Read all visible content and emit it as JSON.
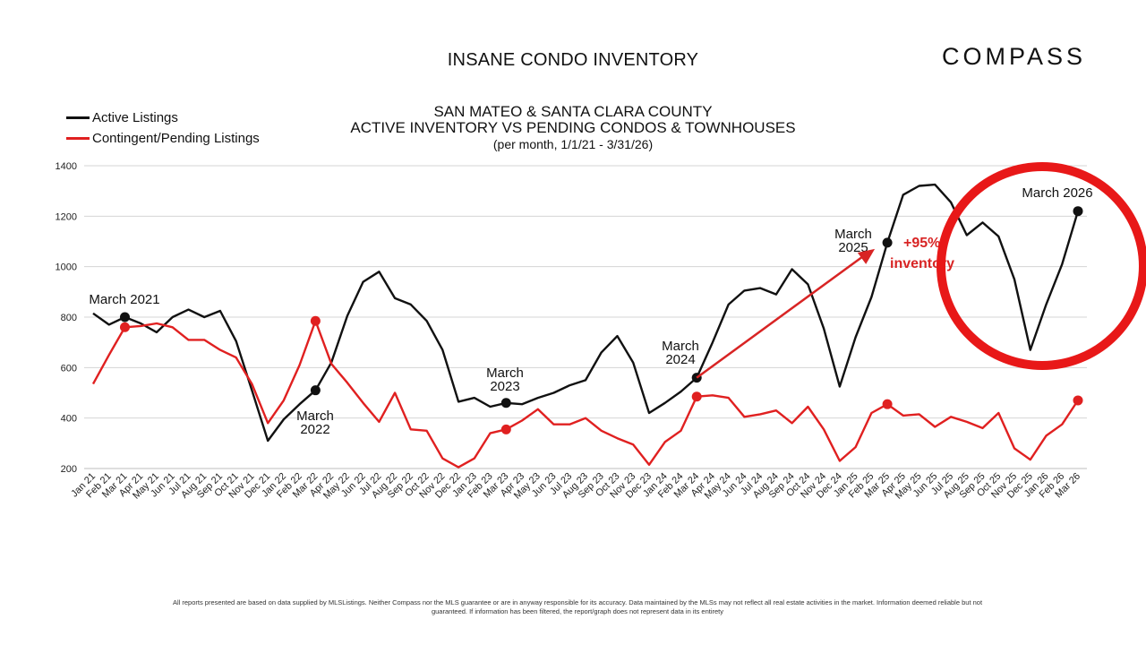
{
  "page_title": "INSANE CONDO INVENTORY",
  "logo_text": "COMPASS",
  "disclaimer_lines": [
    "All reports presented are based on data supplied by MLSListings. Neither Compass nor the MLS guarantee or are in anyway responsible for its accuracy. Data maintained by the MLSs may not reflect all real estate activities in the market. Information deemed reliable but not",
    "guaranteed. If information has been filtered, the report/graph does not represent data in its entirety"
  ],
  "chart_data": {
    "type": "line",
    "title_lines": [
      "SAN MATEO & SANTA CLARA COUNTY",
      "ACTIVE INVENTORY VS PENDING CONDOS & TOWNHOUSES"
    ],
    "subtitle": "(per month, 1/1/21 - 3/31/26)",
    "xlabel": "",
    "ylabel": "",
    "ylim": [
      200,
      1400
    ],
    "yticks": [
      200,
      400,
      600,
      800,
      1000,
      1200,
      1400
    ],
    "grid": true,
    "legend_position": "top-left",
    "categories": [
      "Jan 21",
      "Feb 21",
      "Mar 21",
      "Apr 21",
      "May 21",
      "Jun 21",
      "Jul 21",
      "Aug 21",
      "Sep 21",
      "Oct 21",
      "Nov 21",
      "Dec 21",
      "Jan 22",
      "Feb 22",
      "Mar 22",
      "Apr 22",
      "May 22",
      "Jun 22",
      "Jul 22",
      "Aug 22",
      "Sep 22",
      "Oct 22",
      "Nov 22",
      "Dec 22",
      "Jan 23",
      "Feb 23",
      "Mar 23",
      "Apr 23",
      "May 23",
      "Jun 23",
      "Jul 23",
      "Aug 23",
      "Sep 23",
      "Oct 23",
      "Nov 23",
      "Dec 23",
      "Jan 24",
      "Feb 24",
      "Mar 24",
      "Apr 24",
      "May 24",
      "Jun 24",
      "Jul 24",
      "Aug 24",
      "Sep 24",
      "Oct 24",
      "Nov 24",
      "Dec 24",
      "Jan 25",
      "Feb 25",
      "Mar 25",
      "Apr 25",
      "May 25",
      "Jun 25",
      "Jul 25",
      "Aug 25",
      "Sep 25",
      "Oct 25",
      "Nov 25",
      "Dec 25",
      "Jan 26",
      "Feb 26",
      "Mar 26"
    ],
    "series": [
      {
        "name": "Active Listings",
        "color": "#111111",
        "values": [
          815,
          770,
          800,
          775,
          740,
          800,
          830,
          800,
          825,
          705,
          510,
          310,
          395,
          455,
          510,
          620,
          805,
          940,
          980,
          875,
          850,
          785,
          670,
          465,
          480,
          445,
          460,
          455,
          480,
          500,
          530,
          550,
          660,
          725,
          620,
          420,
          460,
          505,
          560,
          700,
          850,
          905,
          915,
          890,
          990,
          930,
          755,
          525,
          720,
          880,
          1095,
          1285,
          1320,
          1325,
          1255,
          1125,
          1175,
          1120,
          950,
          670,
          850,
          1010,
          1220
        ]
      },
      {
        "name": "Contingent/Pending Listings",
        "color": "#e02020",
        "values": [
          535,
          650,
          760,
          765,
          775,
          760,
          710,
          710,
          670,
          640,
          535,
          380,
          470,
          610,
          785,
          615,
          540,
          460,
          385,
          500,
          355,
          350,
          240,
          205,
          240,
          340,
          355,
          390,
          435,
          375,
          375,
          400,
          350,
          320,
          295,
          215,
          305,
          350,
          485,
          490,
          480,
          405,
          415,
          430,
          380,
          445,
          355,
          230,
          285,
          420,
          455,
          410,
          415,
          365,
          405,
          385,
          360,
          420,
          280,
          235,
          330,
          375,
          470
        ]
      }
    ],
    "annotations": [
      {
        "text": "March 2021",
        "series": 0,
        "index": 2
      },
      {
        "text": "March 2022",
        "series": 0,
        "index": 14
      },
      {
        "text": "March 2023",
        "series": 0,
        "index": 26
      },
      {
        "text": "March 2024",
        "series": 0,
        "index": 38
      },
      {
        "text": "March 2025",
        "series": 0,
        "index": 50
      },
      {
        "text": "March 2026",
        "series": 0,
        "index": 62
      }
    ],
    "callout": {
      "text_line1": "+95%",
      "text_line2": "inventory",
      "from_index": 38,
      "to_index": 50,
      "color": "#d82424"
    }
  }
}
